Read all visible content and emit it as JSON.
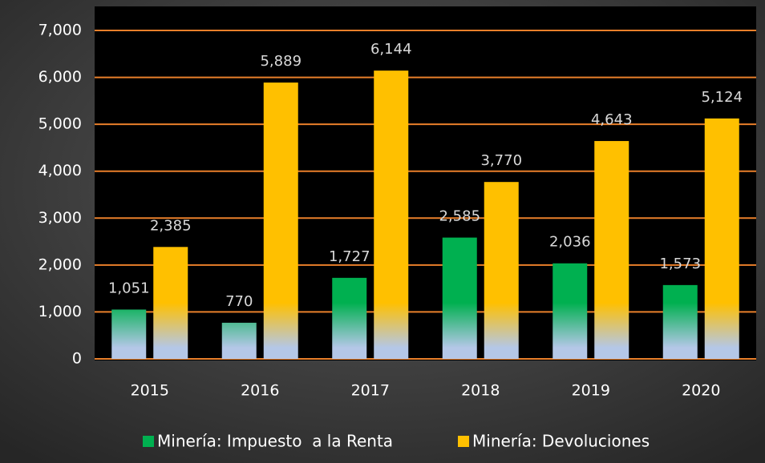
{
  "chart_data": {
    "type": "bar",
    "categories": [
      "2015",
      "2016",
      "2017",
      "2018",
      "2019",
      "2020"
    ],
    "series": [
      {
        "name": "Minería: Impuesto  a la Renta",
        "color": "#00b050",
        "values": [
          1051,
          770,
          1727,
          2585,
          2036,
          1573
        ],
        "value_labels": [
          "1,051",
          "770",
          "1,727",
          "2,585",
          "2,036",
          "1,573"
        ]
      },
      {
        "name": "Minería: Devoluciones",
        "color": "#ffc000",
        "values": [
          2385,
          5889,
          6144,
          3770,
          4643,
          5124
        ],
        "value_labels": [
          "2,385",
          "5,889",
          "6,144",
          "3,770",
          "4,643",
          "5,124"
        ]
      }
    ],
    "ylim": [
      0,
      7000
    ],
    "yticks": [
      0,
      {
        "value": 1000,
        "label": "1,000"
      },
      {
        "value": 2000,
        "label": "2,000"
      },
      {
        "value": 3000,
        "label": "3,000"
      },
      {
        "value": 4000,
        "label": "4,000"
      },
      {
        "value": 5000,
        "label": "5,000"
      },
      {
        "value": 6000,
        "label": "6,000"
      },
      {
        "value": 7000,
        "label": "7,000"
      }
    ],
    "grid": true,
    "grid_color": "#e97f2a",
    "legend": "bottom"
  }
}
